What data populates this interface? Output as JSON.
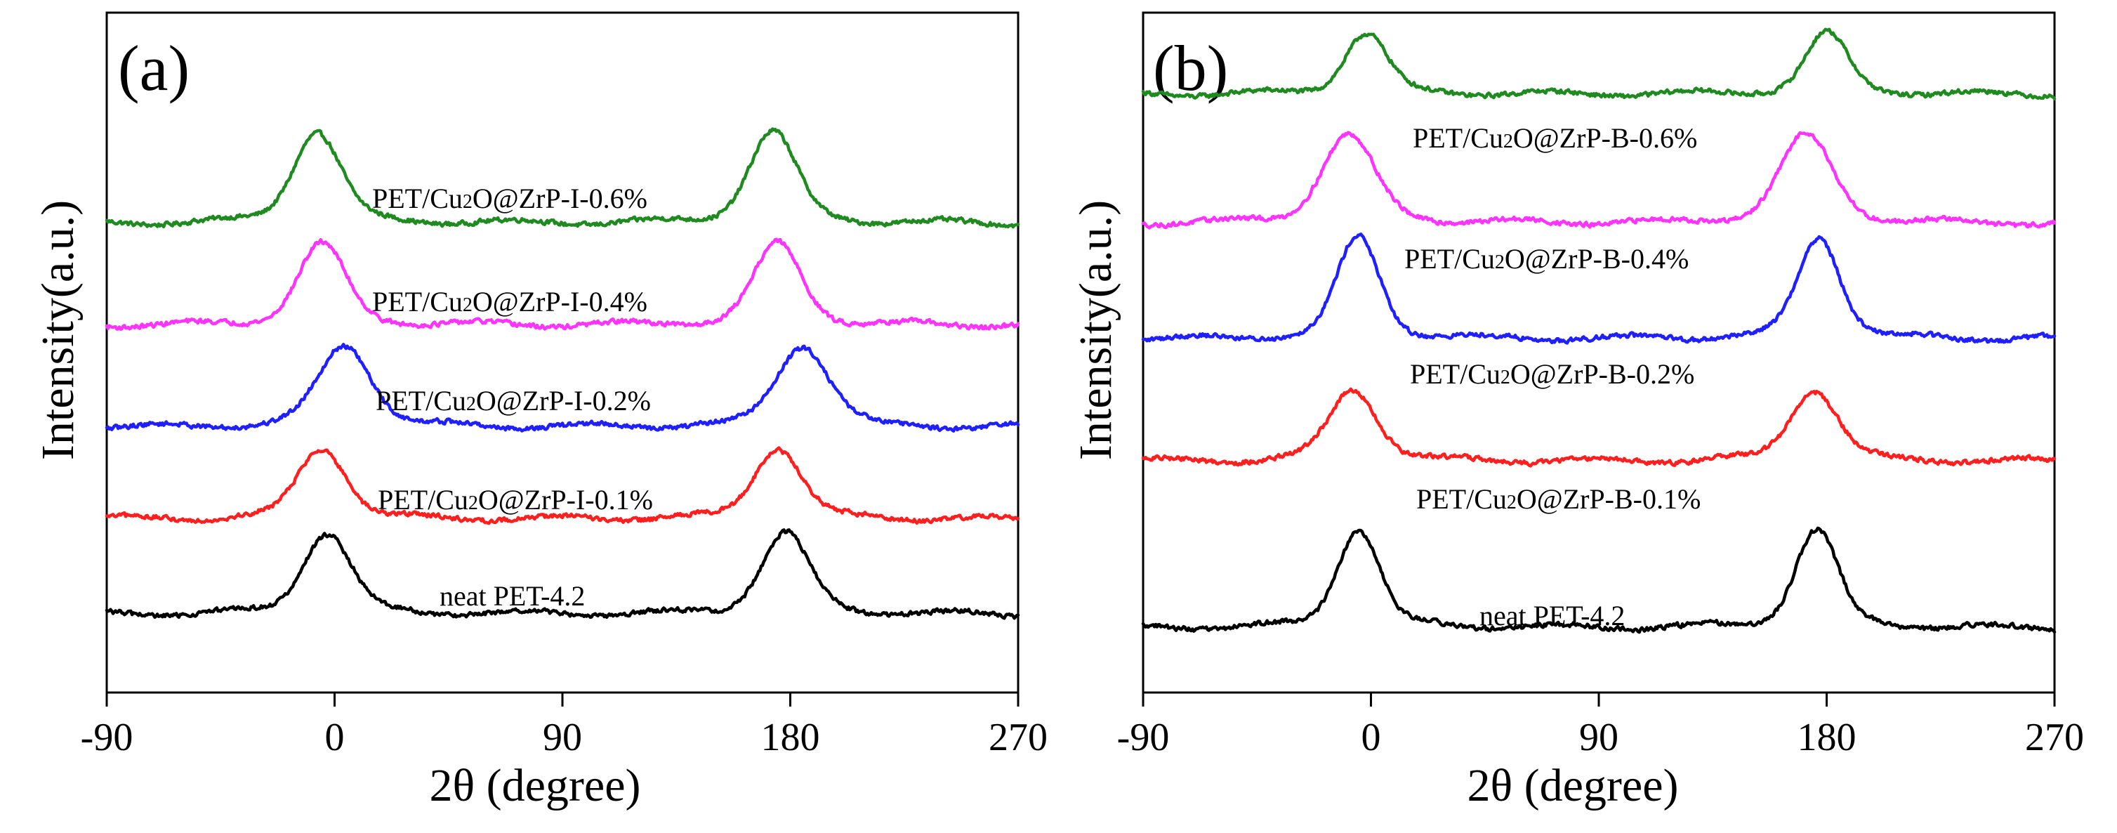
{
  "colors": {
    "green": "#1f8a1f",
    "magenta": "#ff33ff",
    "blue": "#1f1fff",
    "red": "#ff1f1f",
    "black": "#000000"
  },
  "chart_data": [
    {
      "type": "line",
      "panel": "(a)",
      "xlabel": "2θ (degree)",
      "ylabel": "Intensity(a.u.)",
      "xlim": [
        -90,
        270
      ],
      "xticks": [
        "-90",
        "0",
        "90",
        "180",
        "270"
      ],
      "xtick_values": [
        -90,
        0,
        90,
        180,
        270
      ],
      "ylim": [
        0,
        1
      ],
      "series": [
        {
          "name": "PET/Cu2O@ZrP-I-0.6%",
          "label_prefix": "PET/Cu",
          "label_sub": "2",
          "label_suffix": "O@ZrP-I-0.6%",
          "color": "green",
          "baseline": 0.69,
          "peak_height": 0.135,
          "peak_centers": [
            -7,
            173
          ],
          "peak_width": 9
        },
        {
          "name": "PET/Cu2O@ZrP-I-0.4%",
          "label_prefix": "PET/Cu",
          "label_sub": "2",
          "label_suffix": "O@ZrP-I-0.4%",
          "color": "magenta",
          "baseline": 0.54,
          "peak_height": 0.12,
          "peak_centers": [
            -5,
            175
          ],
          "peak_width": 9
        },
        {
          "name": "PET/Cu2O@ZrP-I-0.2%",
          "label_prefix": "PET/Cu",
          "label_sub": "2",
          "label_suffix": "O@ZrP-I-0.2%",
          "color": "blue",
          "baseline": 0.39,
          "peak_height": 0.12,
          "peak_centers": [
            4,
            185
          ],
          "peak_width": 10
        },
        {
          "name": "PET/Cu2O@ZrP-I-0.1%",
          "label_prefix": "PET/Cu",
          "label_sub": "2",
          "label_suffix": "O@ZrP-I-0.1%",
          "color": "red",
          "baseline": 0.255,
          "peak_height": 0.105,
          "peak_centers": [
            -5,
            175
          ],
          "peak_width": 9
        },
        {
          "name": "neat PET-4.2",
          "label_prefix": "neat PET-4.2",
          "label_sub": "",
          "label_suffix": "",
          "color": "black",
          "baseline": 0.115,
          "peak_height": 0.12,
          "peak_centers": [
            -3,
            178
          ],
          "peak_width": 9
        }
      ]
    },
    {
      "type": "line",
      "panel": "(b)",
      "xlabel": "2θ (degree)",
      "ylabel": "Intensity(a.u.)",
      "xlim": [
        -90,
        270
      ],
      "xticks": [
        "-90",
        "0",
        "90",
        "180",
        "270"
      ],
      "xtick_values": [
        -90,
        0,
        90,
        180,
        270
      ],
      "ylim": [
        0,
        1
      ],
      "series": [
        {
          "name": "PET/Cu2O@ZrP-B-0.6%",
          "label_prefix": "PET/Cu",
          "label_sub": "2",
          "label_suffix": "O@ZrP-B-0.6%",
          "color": "green",
          "baseline": 0.88,
          "peak_height": 0.09,
          "peak_centers": [
            -2,
            180
          ],
          "peak_width": 8
        },
        {
          "name": "PET/Cu2O@ZrP-B-0.4%",
          "label_prefix": "PET/Cu",
          "label_sub": "2",
          "label_suffix": "O@ZrP-B-0.4%",
          "color": "magenta",
          "baseline": 0.69,
          "peak_height": 0.13,
          "peak_centers": [
            -9,
            172
          ],
          "peak_width": 10
        },
        {
          "name": "PET/Cu2O@ZrP-B-0.2%",
          "label_prefix": "PET/Cu",
          "label_sub": "2",
          "label_suffix": "O@ZrP-B-0.2%",
          "color": "blue",
          "baseline": 0.52,
          "peak_height": 0.15,
          "peak_centers": [
            -5,
            177
          ],
          "peak_width": 8
        },
        {
          "name": "PET/Cu2O@ZrP-B-0.1%",
          "label_prefix": "PET/Cu",
          "label_sub": "2",
          "label_suffix": "O@ZrP-B-0.1%",
          "color": "red",
          "baseline": 0.34,
          "peak_height": 0.105,
          "peak_centers": [
            -7,
            175
          ],
          "peak_width": 9
        },
        {
          "name": "neat PET-4.2",
          "label_prefix": "neat PET-4.2",
          "label_sub": "",
          "label_suffix": "",
          "color": "black",
          "baseline": 0.095,
          "peak_height": 0.145,
          "peak_centers": [
            -5,
            176
          ],
          "peak_width": 8
        }
      ]
    }
  ]
}
